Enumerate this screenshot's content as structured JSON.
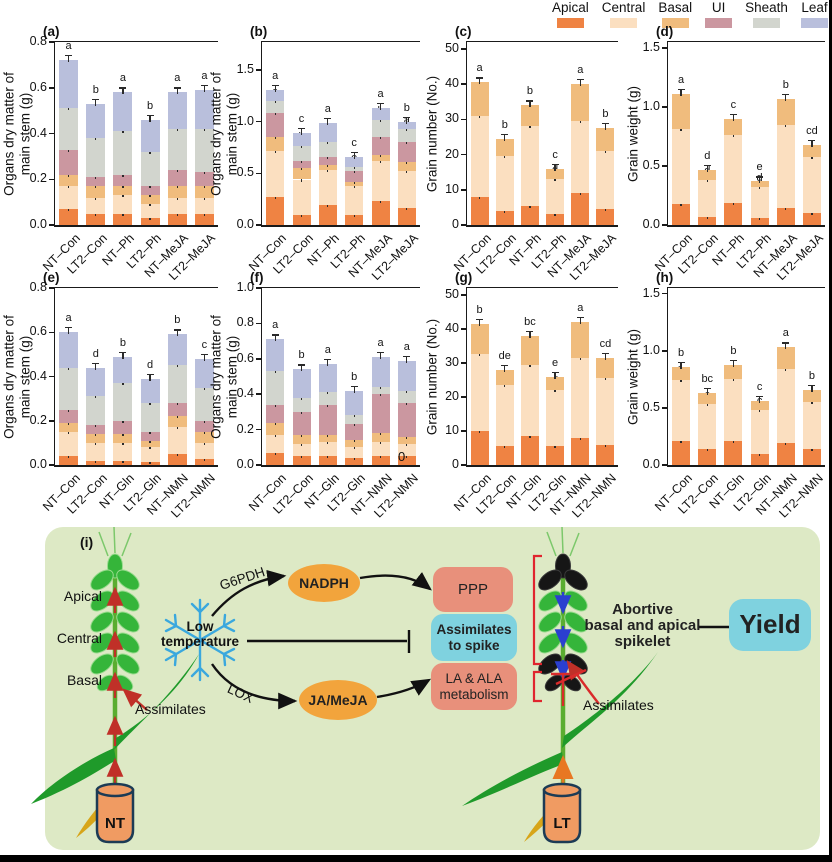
{
  "legend": {
    "items": [
      {
        "label": "Apical",
        "color": "#EF8343"
      },
      {
        "label": "Central",
        "color": "#FBDFC0"
      },
      {
        "label": "Basal",
        "color": "#F0BC7D"
      },
      {
        "label": "UI",
        "color": "#CB97A0"
      },
      {
        "label": "Sheath",
        "color": "#D2D5CE"
      },
      {
        "label": "Leaf",
        "color": "#B9BFDC"
      }
    ]
  },
  "stray_label": "0",
  "chart_data": [
    {
      "id": "a",
      "tag": "(a)",
      "type": "stacked-bar",
      "ylabel_lines": [
        "Organs dry matter of",
        "main stem (g)"
      ],
      "yticks": [
        "0.0",
        "0.2",
        "0.4",
        "0.6",
        "0.8"
      ],
      "ytick_values": [
        0,
        0.2,
        0.4,
        0.6,
        0.8
      ],
      "ymax": 0.8,
      "series": [
        "Apical",
        "Central",
        "Basal",
        "UI",
        "Sheath",
        "Leaf"
      ],
      "categories": [
        "NT–Con",
        "LT2–Con",
        "NT–Ph",
        "LT2–Ph",
        "NT–MeJA",
        "LT2–MeJA"
      ],
      "bars": [
        {
          "values": [
            0.07,
            0.1,
            0.05,
            0.11,
            0.18,
            0.21
          ],
          "letters": [
            "a",
            "a",
            "a",
            "a",
            "a",
            "a"
          ]
        },
        {
          "values": [
            0.05,
            0.07,
            0.05,
            0.04,
            0.17,
            0.15
          ],
          "letters": [
            "b",
            "c",
            "c",
            "c",
            "b",
            "b"
          ]
        },
        {
          "values": [
            0.05,
            0.08,
            0.04,
            0.05,
            0.19,
            0.17
          ],
          "letters": [
            "b",
            "c",
            "a",
            "b",
            "c",
            "a"
          ]
        },
        {
          "values": [
            0.03,
            0.06,
            0.04,
            0.04,
            0.15,
            0.14
          ],
          "letters": [
            "c",
            "c",
            "c",
            "d",
            "c",
            "b"
          ]
        },
        {
          "values": [
            0.05,
            0.07,
            0.05,
            0.07,
            0.18,
            0.16
          ],
          "letters": [
            "b",
            "b",
            "b",
            "c",
            "b",
            "a"
          ]
        },
        {
          "values": [
            0.05,
            0.07,
            0.05,
            0.06,
            0.19,
            0.17
          ],
          "letters": [
            "b",
            "b",
            "b",
            "bc",
            "b",
            "a"
          ]
        }
      ]
    },
    {
      "id": "b",
      "tag": "(b)",
      "type": "stacked-bar",
      "ylabel_lines": [
        "Organs dry matter of",
        "main stem (g)"
      ],
      "yticks": [
        "0.0",
        "0.5",
        "1.0",
        "1.5"
      ],
      "ytick_values": [
        0,
        0.5,
        1.0,
        1.5
      ],
      "ymax": 1.77,
      "series": [
        "Apical",
        "Central",
        "Basal",
        "UI",
        "Sheath",
        "Leaf"
      ],
      "categories": [
        "NT–Con",
        "LT2–Con",
        "NT–Ph",
        "LT2–Ph",
        "NT–MeJA",
        "LT2–MeJA"
      ],
      "bars": [
        {
          "values": [
            0.27,
            0.45,
            0.13,
            0.23,
            0.12,
            0.11
          ],
          "letters": [
            "a",
            "a",
            "a",
            "a",
            "a",
            "a"
          ]
        },
        {
          "values": [
            0.1,
            0.34,
            0.11,
            0.07,
            0.14,
            0.13
          ],
          "letters": [
            "e",
            "b",
            "e",
            "d",
            "b",
            "c"
          ]
        },
        {
          "values": [
            0.19,
            0.34,
            0.05,
            0.08,
            0.14,
            0.19
          ],
          "letters": [
            "c",
            "d",
            "c",
            "c",
            "b",
            "a"
          ]
        },
        {
          "values": [
            0.1,
            0.28,
            0.04,
            0.1,
            0.04,
            0.1
          ],
          "letters": [
            "e",
            "e",
            "e",
            "d",
            "e",
            "c"
          ]
        },
        {
          "values": [
            0.23,
            0.39,
            0.06,
            0.17,
            0.17,
            0.11
          ],
          "letters": [
            "b",
            "c",
            "c",
            "b",
            "b",
            "a"
          ]
        },
        {
          "values": [
            0.16,
            0.36,
            0.09,
            0.19,
            0.13,
            0.07
          ],
          "letters": [
            "d",
            "c",
            "c",
            "c",
            "a",
            "b"
          ]
        }
      ]
    },
    {
      "id": "c",
      "tag": "(c)",
      "type": "stacked-bar",
      "ylabel_lines": [
        "Grain number (No.)"
      ],
      "yticks": [
        "0",
        "10",
        "20",
        "30",
        "40",
        "50"
      ],
      "ytick_values": [
        0,
        10,
        20,
        30,
        40,
        50
      ],
      "ymax": 52,
      "series": [
        "Apical",
        "Central",
        "Basal"
      ],
      "categories": [
        "NT–Con",
        "LT2–Con",
        "NT–Ph",
        "LT2–Ph",
        "NT–MeJA",
        "LT2–MeJA"
      ],
      "bars": [
        {
          "values": [
            8,
            23,
            9.5
          ],
          "letters": [
            "a",
            "a",
            "a"
          ]
        },
        {
          "values": [
            4,
            15.5,
            5
          ],
          "letters": [
            "c",
            "c",
            "b"
          ]
        },
        {
          "values": [
            5.5,
            22.5,
            6
          ],
          "letters": [
            "b",
            "ab",
            "b"
          ]
        },
        {
          "values": [
            3,
            10,
            3
          ],
          "letters": [
            "c",
            "d",
            "c"
          ]
        },
        {
          "values": [
            9,
            20.5,
            10.5
          ],
          "letters": [
            "a",
            "b",
            "a"
          ]
        },
        {
          "values": [
            4.5,
            16.5,
            6.5
          ],
          "letters": [
            "bc",
            "c",
            "b"
          ]
        }
      ]
    },
    {
      "id": "d",
      "tag": "(d)",
      "type": "stacked-bar",
      "ylabel_lines": [
        "Grain weight (g)"
      ],
      "yticks": [
        "0.0",
        "0.5",
        "1.0",
        "1.5"
      ],
      "ytick_values": [
        0,
        0.5,
        1.0,
        1.5
      ],
      "ymax": 1.55,
      "series": [
        "Apical",
        "Central",
        "Basal"
      ],
      "categories": [
        "NT–Con",
        "LT2–Con",
        "NT–Ph",
        "LT2–Ph",
        "NT–MeJA",
        "LT2–MeJA"
      ],
      "bars": [
        {
          "values": [
            0.18,
            0.63,
            0.3
          ],
          "letters": [
            "a",
            "b",
            "a"
          ]
        },
        {
          "values": [
            0.07,
            0.31,
            0.09
          ],
          "letters": [
            "d",
            "d",
            "d"
          ]
        },
        {
          "values": [
            0.19,
            0.57,
            0.14
          ],
          "letters": [
            "a",
            "b",
            "c"
          ]
        },
        {
          "values": [
            0.06,
            0.26,
            0.05
          ],
          "letters": [
            "d",
            "d",
            "e"
          ]
        },
        {
          "values": [
            0.14,
            0.71,
            0.22
          ],
          "letters": [
            "b",
            "a",
            "b"
          ]
        },
        {
          "values": [
            0.1,
            0.48,
            0.1
          ],
          "letters": [
            "c",
            "c",
            "cd"
          ]
        }
      ]
    },
    {
      "id": "e",
      "tag": "(e)",
      "type": "stacked-bar",
      "ylabel_lines": [
        "Organs dry matter of",
        "main stem (g)"
      ],
      "yticks": [
        "0.0",
        "0.2",
        "0.4",
        "0.6",
        "0.8"
      ],
      "ytick_values": [
        0,
        0.2,
        0.4,
        0.6,
        0.8
      ],
      "ymax": 0.8,
      "series": [
        "Apical",
        "Central",
        "Basal",
        "UI",
        "Sheath",
        "Leaf"
      ],
      "categories": [
        "NT–Con",
        "LT2–Con",
        "NT–Gln",
        "LT2–Gln",
        "NT–NMN",
        "LT2–NMN"
      ],
      "bars": [
        {
          "values": [
            0.04,
            0.11,
            0.04,
            0.06,
            0.19,
            0.16
          ],
          "letters": [
            "b",
            "ab",
            "a",
            "a",
            "a",
            "a"
          ]
        },
        {
          "values": [
            0.02,
            0.08,
            0.04,
            0.04,
            0.13,
            0.13
          ],
          "letters": [
            "cd",
            "de",
            "b",
            "b",
            "c",
            "d"
          ]
        },
        {
          "values": [
            0.02,
            0.08,
            0.04,
            0.06,
            0.17,
            0.12
          ],
          "letters": [
            "d",
            "bc",
            "b",
            "b",
            "b",
            "b"
          ]
        },
        {
          "values": [
            0.015,
            0.065,
            0.03,
            0.04,
            0.13,
            0.11
          ],
          "letters": [
            "e",
            "e",
            "c",
            "c",
            "c",
            "d"
          ]
        },
        {
          "values": [
            0.05,
            0.12,
            0.05,
            0.06,
            0.17,
            0.14
          ],
          "letters": [
            "a",
            "a",
            "a",
            "a",
            "a",
            "b"
          ]
        },
        {
          "values": [
            0.025,
            0.075,
            0.05,
            0.05,
            0.15,
            0.13
          ],
          "letters": [
            "c",
            "cd",
            "b",
            "b",
            "b",
            "c"
          ]
        }
      ]
    },
    {
      "id": "f",
      "tag": "(f)",
      "type": "stacked-bar",
      "ylabel_lines": [
        "Organs dry matter of",
        "main stem (g)"
      ],
      "yticks": [
        "0.0",
        "0.2",
        "0.4",
        "0.6",
        "0.8",
        "1.0"
      ],
      "ytick_values": [
        0,
        0.2,
        0.4,
        0.6,
        0.8,
        1.0
      ],
      "ymax": 1.0,
      "series": [
        "Apical",
        "Central",
        "Basal",
        "UI",
        "Sheath",
        "Leaf"
      ],
      "categories": [
        "NT–Con",
        "LT2–Con",
        "NT–Gln",
        "LT2–Gln",
        "NT–NMN",
        "LT2–NMN"
      ],
      "bars": [
        {
          "values": [
            0.07,
            0.1,
            0.07,
            0.1,
            0.19,
            0.18
          ],
          "letters": [
            "a",
            "a",
            "a",
            "a",
            "a",
            "a"
          ]
        },
        {
          "values": [
            0.05,
            0.07,
            0.05,
            0.13,
            0.08,
            0.16
          ],
          "letters": [
            "cd",
            "b",
            "c",
            "c",
            "b",
            "b"
          ]
        },
        {
          "values": [
            0.05,
            0.08,
            0.04,
            0.17,
            0.07,
            0.16
          ],
          "letters": [
            "cd",
            "b",
            "c",
            "b",
            "bc",
            "a"
          ]
        },
        {
          "values": [
            0.04,
            0.06,
            0.04,
            0.09,
            0.05,
            0.14
          ],
          "letters": [
            "d",
            "bc",
            "d",
            "d",
            "d",
            "b"
          ]
        },
        {
          "values": [
            0.05,
            0.08,
            0.05,
            0.22,
            0.04,
            0.17
          ],
          "letters": [
            "b",
            "bc",
            "b",
            "a",
            "bc",
            "a"
          ]
        },
        {
          "values": [
            0.05,
            0.07,
            0.04,
            0.19,
            0.07,
            0.17
          ],
          "letters": [
            "bc",
            "c",
            "b",
            "c",
            "a",
            "a"
          ]
        }
      ]
    },
    {
      "id": "g",
      "tag": "(g)",
      "type": "stacked-bar",
      "ylabel_lines": [
        "Grain number (No.)"
      ],
      "yticks": [
        "0",
        "10",
        "20",
        "30",
        "40",
        "50"
      ],
      "ytick_values": [
        0,
        10,
        20,
        30,
        40,
        50
      ],
      "ymax": 52,
      "series": [
        "Apical",
        "Central",
        "Basal"
      ],
      "categories": [
        "NT–Con",
        "LT2–Con",
        "NT–Gln",
        "LT2–Gln",
        "NT–NMN",
        "LT2–NMN"
      ],
      "bars": [
        {
          "values": [
            10,
            22.5,
            9
          ],
          "letters": [
            "a",
            "a",
            "b"
          ]
        },
        {
          "values": [
            5.5,
            18,
            4.5
          ],
          "letters": [
            "b",
            "cd",
            "de"
          ]
        },
        {
          "values": [
            8.5,
            21,
            8.5
          ],
          "letters": [
            "a",
            "ab",
            "bc"
          ]
        },
        {
          "values": [
            5.5,
            16.5,
            4
          ],
          "letters": [
            "b",
            "d",
            "e"
          ]
        },
        {
          "values": [
            8,
            23.5,
            10.5
          ],
          "letters": [
            "a",
            "a",
            "a"
          ]
        },
        {
          "values": [
            6,
            19.5,
            6
          ],
          "letters": [
            "b",
            "bc",
            "cd"
          ]
        }
      ]
    },
    {
      "id": "h",
      "tag": "(h)",
      "type": "stacked-bar",
      "ylabel_lines": [
        "Grain weight (g)"
      ],
      "yticks": [
        "0.0",
        "0.5",
        "1.0",
        "1.5"
      ],
      "ytick_values": [
        0,
        0.5,
        1.0,
        1.5
      ],
      "ymax": 1.55,
      "series": [
        "Apical",
        "Central",
        "Basal"
      ],
      "categories": [
        "NT–Con",
        "LT2–Con",
        "NT–Gln",
        "LT2–Gln",
        "NT–NMN",
        "LT2–NMN"
      ],
      "bars": [
        {
          "values": [
            0.21,
            0.53,
            0.12
          ],
          "letters": [
            "a",
            "b",
            "b"
          ]
        },
        {
          "values": [
            0.14,
            0.39,
            0.1
          ],
          "letters": [
            "b",
            "c",
            "bc"
          ]
        },
        {
          "values": [
            0.21,
            0.54,
            0.13
          ],
          "letters": [
            "a",
            "b",
            "b"
          ]
        },
        {
          "values": [
            0.1,
            0.38,
            0.08
          ],
          "letters": [
            "c",
            "c",
            "c"
          ]
        },
        {
          "values": [
            0.19,
            0.65,
            0.19
          ],
          "letters": [
            "a",
            "a",
            "a"
          ]
        },
        {
          "values": [
            0.14,
            0.41,
            0.11
          ],
          "letters": [
            "b",
            "c",
            "b"
          ]
        }
      ]
    }
  ],
  "diagram": {
    "tag": "(i)",
    "plant_left": {
      "apical": "Apical",
      "central": "Central",
      "basal": "Basal",
      "assimilates": "Assimilates",
      "pot": "NT"
    },
    "plant_right": {
      "assimilates": "Assimilates",
      "pot": "LT"
    },
    "low_temperature": "Low\ntemperature",
    "enzymes": {
      "g6pdh": "G6PDH",
      "lox": "LOX"
    },
    "nodes": {
      "nadph": "NADPH",
      "ja_meja": "JA/MeJA",
      "ppp": "PPP",
      "assimilates_to_spike": "Assimilates\nto spike",
      "la_ala": "LA & ALA\nmetabolism",
      "abortive": "Abortive\nbasal and apical\nspikelet",
      "yield": "Yield"
    },
    "colors": {
      "panel_bg": "#DDE9C5",
      "node_orange": "#F2A43C",
      "node_salmon": "#E8907B",
      "node_cyan": "#7FD2DF",
      "snowflake": "#3AA8DE",
      "red": "#C03028",
      "bracket_red": "#E0252E"
    }
  }
}
